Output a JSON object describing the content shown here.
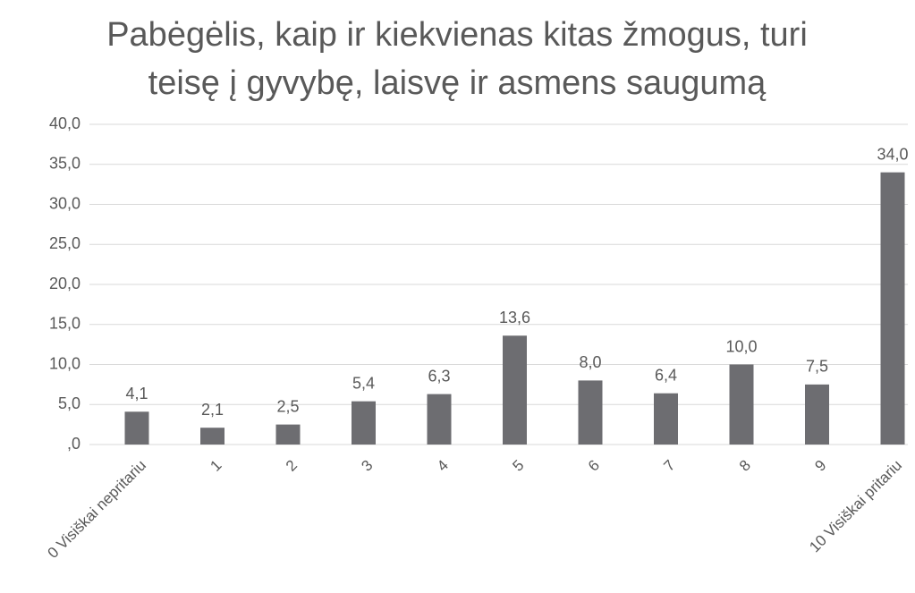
{
  "chart_data": {
    "type": "bar",
    "title": "Pabėgėlis, kaip ir kiekvienas kitas žmogus, turi teisę į gyvybę, laisvę ir asmens saugumą",
    "categories": [
      "0 Visiškai nepritariu",
      "1",
      "2",
      "3",
      "4",
      "5",
      "6",
      "7",
      "8",
      "9",
      "10 Visiškai pritariu"
    ],
    "values": [
      4.1,
      2.1,
      2.5,
      5.4,
      6.3,
      13.6,
      8.0,
      6.4,
      10.0,
      7.5,
      34.0
    ],
    "value_labels": [
      "4,1",
      "2,1",
      "2,5",
      "5,4",
      "6,3",
      "13,6",
      "8,0",
      "6,4",
      "10,0",
      "7,5",
      "34,0"
    ],
    "color": "#6d6d71",
    "ylim": [
      0,
      40
    ],
    "yticks": [
      {
        "value": 0,
        "label": ",0"
      },
      {
        "value": 5,
        "label": "5,0"
      },
      {
        "value": 10,
        "label": "10,0"
      },
      {
        "value": 15,
        "label": "15,0"
      },
      {
        "value": 20,
        "label": "20,0"
      },
      {
        "value": 25,
        "label": "25,0"
      },
      {
        "value": 30,
        "label": "30,0"
      },
      {
        "value": 35,
        "label": "35,0"
      },
      {
        "value": 40,
        "label": "40,0"
      }
    ],
    "grid": true
  }
}
